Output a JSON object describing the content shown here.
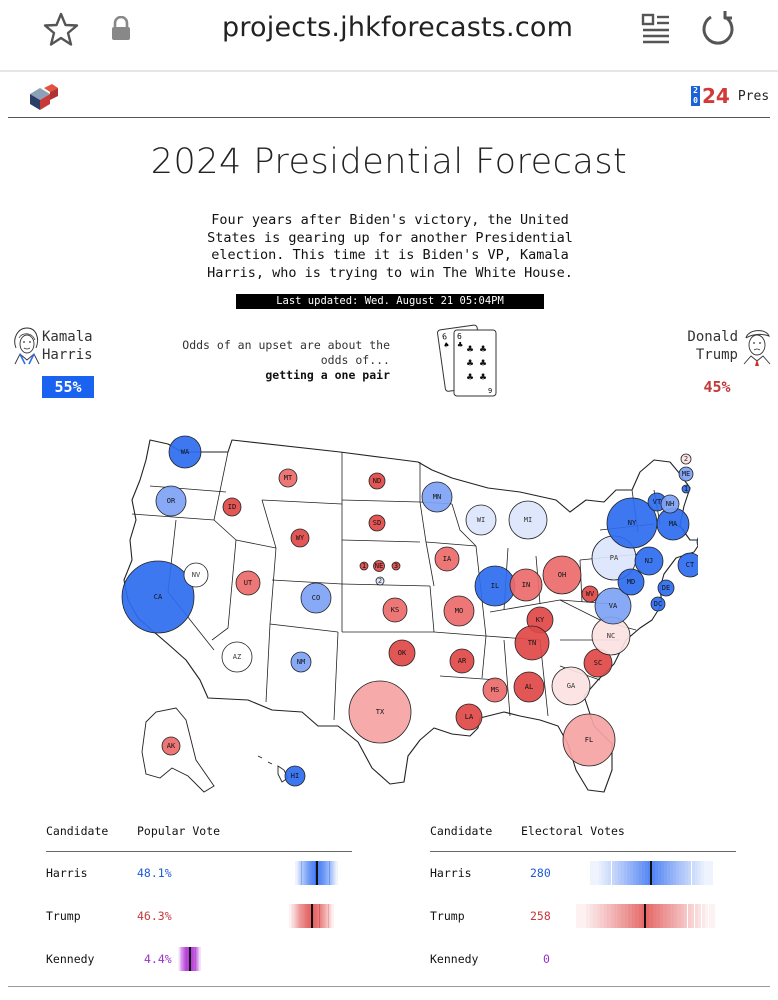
{
  "browser": {
    "url": "projects.jhkforecasts.com"
  },
  "header": {
    "badge_small": [
      "2",
      "0"
    ],
    "badge_year": "24",
    "badge_label": "Pres"
  },
  "title": "2024 Presidential Forecast",
  "intro": "Four years after Biden's victory, the United States is gearing up for another Presidential election. This time it is Biden's VP, Kamala Harris, who is trying to win The White House.",
  "last_updated": "Last updated: Wed. August 21 05:04PM",
  "candidates": {
    "left": {
      "name_line1": "Kamala",
      "name_line2": "Harris",
      "odds": "55%"
    },
    "right": {
      "name_line1": "Donald",
      "name_line2": "Trump",
      "odds": "45%"
    }
  },
  "upset": {
    "line1": "Odds of an upset are about the",
    "line2": "odds of...",
    "line3": "getting a one pair"
  },
  "cards": {
    "back_rank": "6",
    "front_top": "6",
    "front_bottom": "9"
  },
  "colors": {
    "dem": "#2e6cf0",
    "rep": "#e04848",
    "ind": "#b43ad6"
  },
  "states": [
    {
      "abbr": "WA",
      "lean": "dem-strong"
    },
    {
      "abbr": "OR",
      "lean": "dem-lean"
    },
    {
      "abbr": "CA",
      "lean": "dem-strong"
    },
    {
      "abbr": "NV",
      "lean": "tossup"
    },
    {
      "abbr": "ID",
      "lean": "rep-strong"
    },
    {
      "abbr": "MT",
      "lean": "rep-likely"
    },
    {
      "abbr": "WY",
      "lean": "rep-strong"
    },
    {
      "abbr": "UT",
      "lean": "rep-likely"
    },
    {
      "abbr": "AZ",
      "lean": "tossup"
    },
    {
      "abbr": "CO",
      "lean": "dem-lean"
    },
    {
      "abbr": "NM",
      "lean": "dem-lean"
    },
    {
      "abbr": "ND",
      "lean": "rep-strong"
    },
    {
      "abbr": "SD",
      "lean": "rep-strong"
    },
    {
      "abbr": "NE",
      "lean": "rep-strong"
    },
    {
      "abbr": "KS",
      "lean": "rep-likely"
    },
    {
      "abbr": "OK",
      "lean": "rep-strong"
    },
    {
      "abbr": "TX",
      "lean": "rep-lean"
    },
    {
      "abbr": "MN",
      "lean": "dem-lean"
    },
    {
      "abbr": "IA",
      "lean": "rep-likely"
    },
    {
      "abbr": "MO",
      "lean": "rep-likely"
    },
    {
      "abbr": "AR",
      "lean": "rep-strong"
    },
    {
      "abbr": "LA",
      "lean": "rep-strong"
    },
    {
      "abbr": "WI",
      "lean": "dem-tilt"
    },
    {
      "abbr": "MI",
      "lean": "dem-tilt"
    },
    {
      "abbr": "IL",
      "lean": "dem-strong"
    },
    {
      "abbr": "IN",
      "lean": "rep-likely"
    },
    {
      "abbr": "OH",
      "lean": "rep-likely"
    },
    {
      "abbr": "KY",
      "lean": "rep-strong"
    },
    {
      "abbr": "TN",
      "lean": "rep-strong"
    },
    {
      "abbr": "MS",
      "lean": "rep-likely"
    },
    {
      "abbr": "AL",
      "lean": "rep-strong"
    },
    {
      "abbr": "GA",
      "lean": "rep-tilt"
    },
    {
      "abbr": "FL",
      "lean": "rep-lean"
    },
    {
      "abbr": "SC",
      "lean": "rep-strong"
    },
    {
      "abbr": "NC",
      "lean": "rep-tilt"
    },
    {
      "abbr": "VA",
      "lean": "dem-lean"
    },
    {
      "abbr": "WV",
      "lean": "rep-strong"
    },
    {
      "abbr": "PA",
      "lean": "dem-tilt"
    },
    {
      "abbr": "NY",
      "lean": "dem-strong"
    },
    {
      "abbr": "NJ",
      "lean": "dem-strong"
    },
    {
      "abbr": "MD",
      "lean": "dem-strong"
    },
    {
      "abbr": "DE",
      "lean": "dem-strong"
    },
    {
      "abbr": "DC",
      "lean": "dem-strong"
    },
    {
      "abbr": "CT",
      "lean": "dem-strong"
    },
    {
      "abbr": "RI",
      "lean": "dem-strong"
    },
    {
      "abbr": "MA",
      "lean": "dem-strong"
    },
    {
      "abbr": "VT",
      "lean": "dem-strong"
    },
    {
      "abbr": "NH",
      "lean": "dem-lean"
    },
    {
      "abbr": "ME",
      "lean": "dem-lean"
    },
    {
      "abbr": "AK",
      "lean": "rep-likely"
    },
    {
      "abbr": "HI",
      "lean": "dem-strong"
    }
  ],
  "district_marks": {
    "ne": [
      {
        "label": "1",
        "lean": "rep-strong"
      },
      {
        "label": "NE",
        "lean": "rep-strong"
      },
      {
        "label": "3",
        "lean": "rep-strong"
      },
      {
        "label": "2",
        "lean": "dem-tilt"
      }
    ],
    "me": [
      {
        "label": "2",
        "lean": "rep-tilt"
      },
      {
        "label": "1",
        "lean": "dem-strong"
      }
    ]
  },
  "popular_vote": {
    "col_candidate": "Candidate",
    "col_metric": "Popular Vote",
    "rows": [
      {
        "name": "Harris",
        "value": "48.1%",
        "party": "dem"
      },
      {
        "name": "Trump",
        "value": "46.3%",
        "party": "rep"
      },
      {
        "name": "Kennedy",
        "value": "4.4%",
        "party": "ind"
      }
    ]
  },
  "electoral_votes": {
    "col_candidate": "Candidate",
    "col_metric": "Electoral Votes",
    "rows": [
      {
        "name": "Harris",
        "value": "280",
        "party": "dem"
      },
      {
        "name": "Trump",
        "value": "258",
        "party": "rep"
      },
      {
        "name": "Kennedy",
        "value": "0",
        "party": "ind"
      }
    ]
  }
}
